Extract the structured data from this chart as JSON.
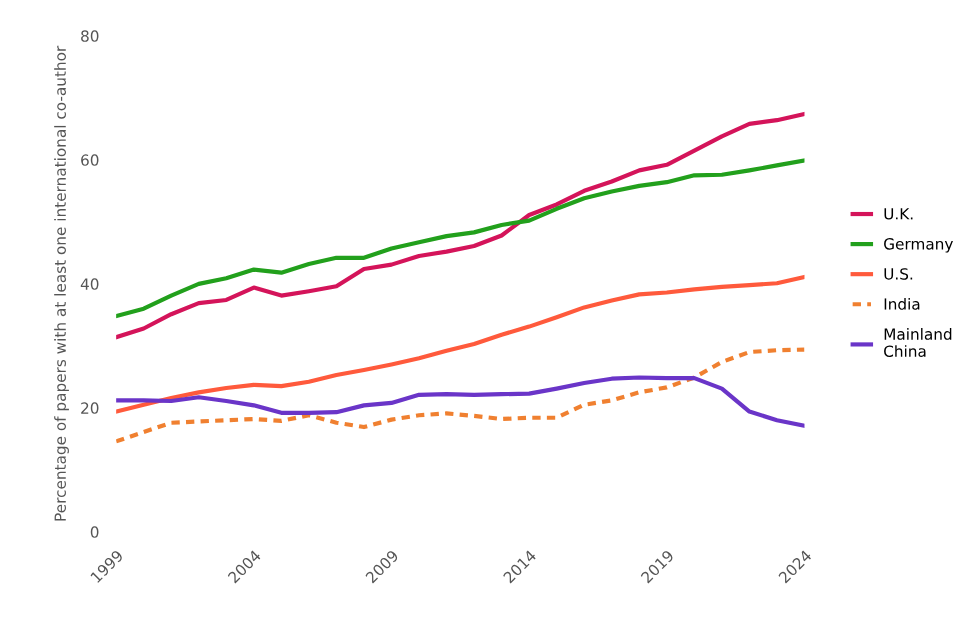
{
  "chart_data": {
    "type": "line",
    "ylabel": "Percentage of papers with at least one international co-author",
    "x": [
      1999,
      2000,
      2001,
      2002,
      2003,
      2004,
      2005,
      2006,
      2007,
      2008,
      2009,
      2010,
      2011,
      2012,
      2013,
      2014,
      2015,
      2016,
      2017,
      2018,
      2019,
      2020,
      2021,
      2022,
      2023,
      2024
    ],
    "series": [
      {
        "name": "U.K.",
        "color": "#d4145a",
        "line_style": "solid",
        "values": [
          31.4,
          32.8,
          35.1,
          36.9,
          37.4,
          39.4,
          38.1,
          38.8,
          39.6,
          42.4,
          43.1,
          44.5,
          45.2,
          46.1,
          47.8,
          51.1,
          52.8,
          55.0,
          56.5,
          58.3,
          59.2,
          61.5,
          63.8,
          65.8,
          66.4,
          67.4
        ]
      },
      {
        "name": "Germany",
        "color": "#22a01c",
        "line_style": "solid",
        "values": [
          34.8,
          36.0,
          38.1,
          40.0,
          40.9,
          42.3,
          41.8,
          43.2,
          44.2,
          44.2,
          45.7,
          46.7,
          47.7,
          48.3,
          49.5,
          50.2,
          52.1,
          53.8,
          54.9,
          55.8,
          56.4,
          57.5,
          57.6,
          58.3,
          59.1,
          59.9
        ]
      },
      {
        "name": "U.S.",
        "color": "#ff5a3c",
        "line_style": "solid",
        "values": [
          19.4,
          20.5,
          21.6,
          22.5,
          23.2,
          23.7,
          23.5,
          24.2,
          25.3,
          26.1,
          27.0,
          28.0,
          29.2,
          30.3,
          31.8,
          33.1,
          34.6,
          36.2,
          37.3,
          38.3,
          38.6,
          39.1,
          39.5,
          39.8,
          40.1,
          41.1
        ]
      },
      {
        "name": "India",
        "color": "#f08030",
        "line_style": "dashed",
        "values": [
          14.6,
          16.1,
          17.6,
          17.8,
          18.0,
          18.2,
          17.9,
          18.8,
          17.6,
          16.9,
          18.1,
          18.8,
          19.1,
          18.7,
          18.2,
          18.4,
          18.4,
          20.5,
          21.2,
          22.5,
          23.3,
          24.9,
          27.4,
          29.0,
          29.3,
          29.4
        ]
      },
      {
        "name": "Mainland\nChina",
        "color": "#6a35c8",
        "line_style": "solid",
        "values": [
          21.2,
          21.2,
          21.1,
          21.7,
          21.1,
          20.4,
          19.2,
          19.2,
          19.3,
          20.4,
          20.8,
          22.1,
          22.2,
          22.1,
          22.2,
          22.3,
          23.1,
          24.0,
          24.7,
          24.9,
          24.8,
          24.8,
          23.1,
          19.4,
          18.0,
          17.1
        ]
      }
    ],
    "xlim": [
      1999,
      2024
    ],
    "xticks": [
      1999,
      2004,
      2009,
      2014,
      2019,
      2024
    ],
    "ylim": [
      0,
      80
    ],
    "yticks": [
      0,
      20,
      40,
      60,
      80
    ],
    "grid": false,
    "legend": "right",
    "marker": "none"
  }
}
